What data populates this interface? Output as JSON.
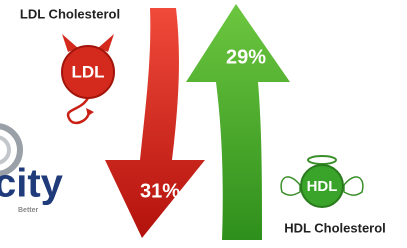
{
  "ldl": {
    "title": "LDL Cholesterol",
    "badge": "LDL",
    "change": "31%"
  },
  "hdl": {
    "title": "HDL Cholesterol",
    "badge": "HDL",
    "change": "29%"
  },
  "logo": {
    "name": "city",
    "tagline": "Better"
  }
}
